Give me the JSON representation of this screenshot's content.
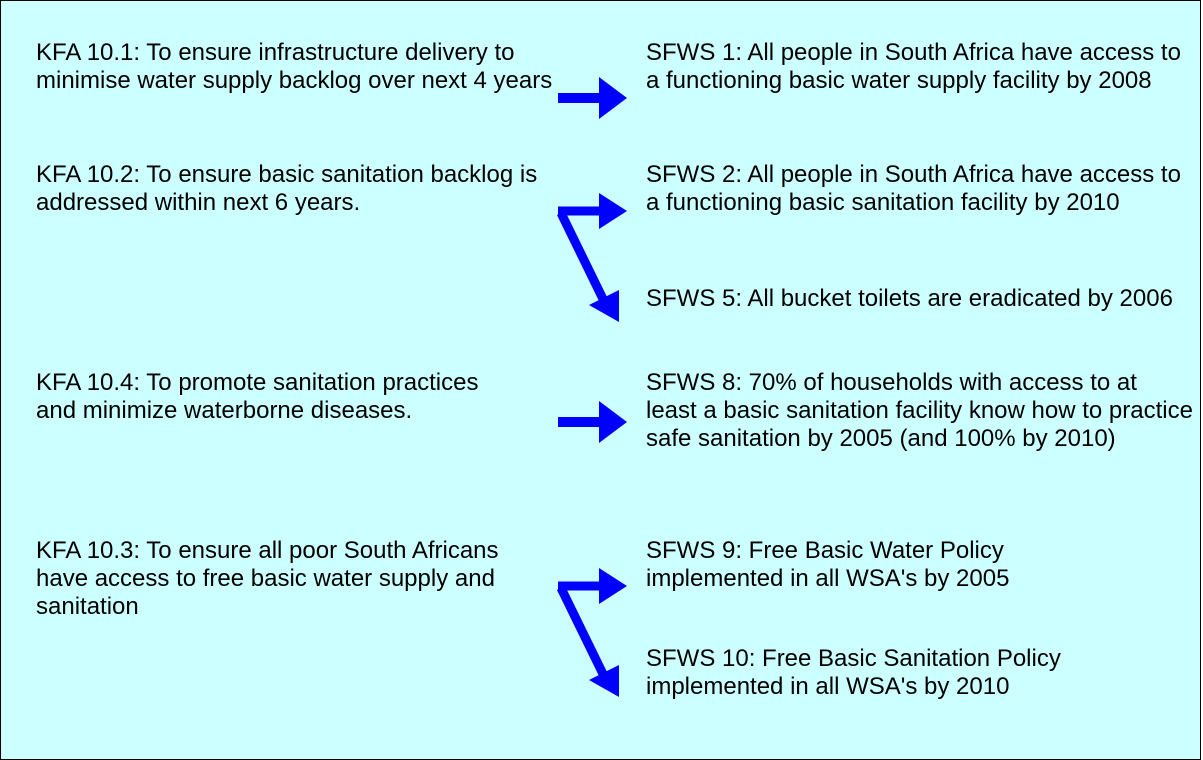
{
  "rows": [
    {
      "kfa": "KFA 10.1: To ensure infrastructure delivery to minimise water supply backlog over next 4 years",
      "targets": [
        "SFWS 1: All people in South Africa have access to a functioning basic water supply facility by 2008"
      ]
    },
    {
      "kfa": "KFA 10.2: To ensure basic sanitation backlog is addressed within next 6 years.",
      "targets": [
        "SFWS 2: All people in South Africa have access to a functioning basic sanitation facility by 2010",
        "SFWS 5: All bucket toilets are eradicated by 2006"
      ]
    },
    {
      "kfa": "KFA 10.4: To promote sanitation practices and minimize waterborne diseases.",
      "targets": [
        "SFWS 8: 70% of households with access to at least a basic sanitation facility know how to practice safe sanitation by 2005 (and 100% by 2010)"
      ]
    },
    {
      "kfa": "KFA 10.3: To ensure all poor South Africans have access to free basic water supply and sanitation",
      "targets": [
        "SFWS 9: Free Basic Water Policy implemented in all WSA's by 2005",
        "SFWS 10: Free Basic Sanitation Policy implemented in all WSA's by 2010"
      ]
    }
  ]
}
